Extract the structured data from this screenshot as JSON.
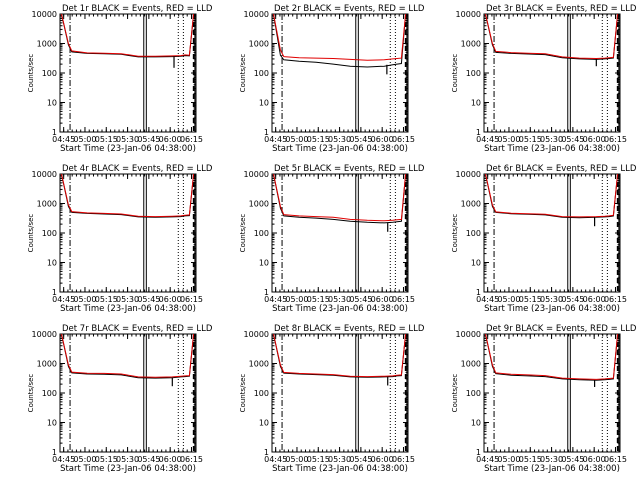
{
  "chart_data": [
    {
      "type": "line",
      "title": "Det 1r BLACK = Events, RED = LLD",
      "xlabel": "Start Time (23-Jan-06 04:38:00)",
      "ylabel": "Counts/sec",
      "yscale": "log",
      "ylim": [
        1,
        10000
      ],
      "xlim": [
        0.082,
        1.678
      ],
      "xtick_labels": [
        "04:45",
        "05:00",
        "05:15",
        "05:30",
        "05:45",
        "06:00",
        "06:15"
      ],
      "ytick_labels": [
        "1",
        "10",
        "100",
        "1000",
        "10000"
      ],
      "x": [
        0.1,
        0.18,
        0.22,
        0.4,
        0.6,
        0.8,
        1.0,
        1.2,
        1.4,
        1.5,
        1.55,
        1.6,
        1.65
      ],
      "series": [
        {
          "color": "#000000",
          "values": [
            10000,
            900,
            520,
            460,
            450,
            430,
            350,
            350,
            360,
            370,
            390,
            380,
            10000
          ]
        },
        {
          "color": "#e00000",
          "values": [
            10000,
            1000,
            560,
            480,
            470,
            450,
            370,
            370,
            380,
            390,
            410,
            400,
            10000
          ]
        }
      ],
      "dips": [
        {
          "x": 1.42,
          "y": 150
        }
      ],
      "time_markers": [
        0.2,
        1.065,
        1.095,
        1.47,
        1.53,
        1.65,
        1.665
      ]
    },
    {
      "type": "line",
      "title": "Det 2r BLACK = Events, RED = LLD",
      "xlabel": "Start Time (23-Jan-06 04:38:00)",
      "ylabel": "Counts/sec",
      "yscale": "log",
      "ylim": [
        1,
        10000
      ],
      "xlim": [
        0.082,
        1.678
      ],
      "xtick_labels": [
        "04:45",
        "05:00",
        "05:15",
        "05:30",
        "05:45",
        "06:00",
        "06:15"
      ],
      "ytick_labels": [
        "1",
        "10",
        "100",
        "1000",
        "10000"
      ],
      "x": [
        0.1,
        0.18,
        0.22,
        0.4,
        0.6,
        0.8,
        1.0,
        1.2,
        1.4,
        1.5,
        1.55,
        1.6,
        1.65
      ],
      "series": [
        {
          "color": "#000000",
          "values": [
            10000,
            400,
            280,
            250,
            230,
            200,
            170,
            160,
            170,
            190,
            200,
            210,
            10000
          ]
        },
        {
          "color": "#e00000",
          "values": [
            10000,
            600,
            360,
            330,
            320,
            310,
            290,
            270,
            280,
            300,
            310,
            320,
            10000
          ]
        }
      ],
      "dips": [
        {
          "x": 1.43,
          "y": 90
        }
      ],
      "time_markers": [
        0.2,
        1.065,
        1.095,
        1.47,
        1.53,
        1.65,
        1.665
      ]
    },
    {
      "type": "line",
      "title": "Det 3r BLACK = Events, RED = LLD",
      "xlabel": "Start Time (23-Jan-06 04:38:00)",
      "ylabel": "Counts/sec",
      "yscale": "log",
      "ylim": [
        1,
        10000
      ],
      "xlim": [
        0.082,
        1.678
      ],
      "xtick_labels": [
        "04:45",
        "05:00",
        "05:15",
        "05:30",
        "05:45",
        "06:00",
        "06:15"
      ],
      "ytick_labels": [
        "1",
        "10",
        "100",
        "1000",
        "10000"
      ],
      "x": [
        0.1,
        0.18,
        0.22,
        0.4,
        0.6,
        0.8,
        1.0,
        1.2,
        1.4,
        1.5,
        1.55,
        1.6,
        1.65
      ],
      "series": [
        {
          "color": "#000000",
          "values": [
            10000,
            900,
            500,
            460,
            440,
            420,
            330,
            300,
            290,
            300,
            310,
            320,
            10000
          ]
        },
        {
          "color": "#e00000",
          "values": [
            10000,
            1000,
            540,
            490,
            470,
            450,
            350,
            320,
            310,
            320,
            330,
            340,
            10000
          ]
        }
      ],
      "dips": [
        {
          "x": 1.4,
          "y": 170
        }
      ],
      "time_markers": [
        0.2,
        1.065,
        1.095,
        1.47,
        1.53,
        1.65,
        1.665
      ]
    },
    {
      "type": "line",
      "title": "Det 4r BLACK = Events, RED = LLD",
      "xlabel": "Start Time (23-Jan-06 04:38:00)",
      "ylabel": "Counts/sec",
      "yscale": "log",
      "ylim": [
        1,
        10000
      ],
      "xlim": [
        0.082,
        1.678
      ],
      "xtick_labels": [
        "04:45",
        "05:00",
        "05:15",
        "05:30",
        "05:45",
        "06:00",
        "06:15"
      ],
      "ytick_labels": [
        "1",
        "10",
        "100",
        "1000",
        "10000"
      ],
      "x": [
        0.1,
        0.18,
        0.22,
        0.4,
        0.6,
        0.8,
        1.0,
        1.2,
        1.4,
        1.5,
        1.55,
        1.6,
        1.65
      ],
      "series": [
        {
          "color": "#000000",
          "values": [
            10000,
            800,
            500,
            460,
            440,
            420,
            350,
            340,
            350,
            360,
            380,
            390,
            10000
          ]
        },
        {
          "color": "#e00000",
          "values": [
            10000,
            900,
            530,
            480,
            460,
            440,
            370,
            360,
            370,
            380,
            400,
            410,
            10000
          ]
        }
      ],
      "dips": [],
      "time_markers": [
        0.2,
        1.065,
        1.095,
        1.47,
        1.53,
        1.65,
        1.665
      ]
    },
    {
      "type": "line",
      "title": "Det 5r BLACK = Events, RED = LLD",
      "xlabel": "Start Time (23-Jan-06 04:38:00)",
      "ylabel": "Counts/sec",
      "yscale": "log",
      "ylim": [
        1,
        10000
      ],
      "xlim": [
        0.082,
        1.678
      ],
      "xtick_labels": [
        "04:45",
        "05:00",
        "05:15",
        "05:30",
        "05:45",
        "06:00",
        "06:15"
      ],
      "ytick_labels": [
        "1",
        "10",
        "100",
        "1000",
        "10000"
      ],
      "x": [
        0.1,
        0.18,
        0.22,
        0.4,
        0.6,
        0.8,
        1.0,
        1.2,
        1.4,
        1.5,
        1.55,
        1.6,
        1.65
      ],
      "series": [
        {
          "color": "#000000",
          "values": [
            10000,
            700,
            380,
            340,
            320,
            290,
            250,
            230,
            220,
            230,
            240,
            250,
            10000
          ]
        },
        {
          "color": "#e00000",
          "values": [
            10000,
            800,
            420,
            380,
            360,
            340,
            290,
            270,
            260,
            270,
            280,
            290,
            10000
          ]
        }
      ],
      "dips": [
        {
          "x": 1.44,
          "y": 110
        }
      ],
      "time_markers": [
        0.2,
        1.065,
        1.095,
        1.47,
        1.53,
        1.65,
        1.665
      ]
    },
    {
      "type": "line",
      "title": "Det 6r BLACK = Events, RED = LLD",
      "xlabel": "Start Time (23-Jan-06 04:38:00)",
      "ylabel": "Counts/sec",
      "yscale": "log",
      "ylim": [
        1,
        10000
      ],
      "xlim": [
        0.082,
        1.678
      ],
      "xtick_labels": [
        "04:45",
        "05:00",
        "05:15",
        "05:30",
        "05:45",
        "06:00",
        "06:15"
      ],
      "ytick_labels": [
        "1",
        "10",
        "100",
        "1000",
        "10000"
      ],
      "x": [
        0.1,
        0.18,
        0.22,
        0.4,
        0.6,
        0.8,
        1.0,
        1.2,
        1.4,
        1.5,
        1.55,
        1.6,
        1.65
      ],
      "series": [
        {
          "color": "#000000",
          "values": [
            10000,
            800,
            500,
            450,
            430,
            410,
            340,
            330,
            340,
            350,
            360,
            380,
            10000
          ]
        },
        {
          "color": "#e00000",
          "values": [
            10000,
            900,
            520,
            470,
            450,
            430,
            360,
            350,
            360,
            370,
            380,
            400,
            10000
          ]
        }
      ],
      "dips": [
        {
          "x": 1.38,
          "y": 170
        }
      ],
      "time_markers": [
        0.2,
        1.065,
        1.095,
        1.47,
        1.53,
        1.65,
        1.665
      ]
    },
    {
      "type": "line",
      "title": "Det 7r BLACK = Events, RED = LLD",
      "xlabel": "Start Time (23-Jan-06 04:38:00)",
      "ylabel": "Counts/sec",
      "yscale": "log",
      "ylim": [
        1,
        10000
      ],
      "xlim": [
        0.082,
        1.678
      ],
      "xtick_labels": [
        "04:45",
        "05:00",
        "05:15",
        "05:30",
        "05:45",
        "06:00",
        "06:15"
      ],
      "ytick_labels": [
        "1",
        "10",
        "100",
        "1000",
        "10000"
      ],
      "x": [
        0.1,
        0.18,
        0.22,
        0.4,
        0.6,
        0.8,
        1.0,
        1.2,
        1.4,
        1.5,
        1.55,
        1.6,
        1.65
      ],
      "series": [
        {
          "color": "#000000",
          "values": [
            10000,
            800,
            480,
            440,
            430,
            410,
            330,
            320,
            330,
            350,
            360,
            370,
            10000
          ]
        },
        {
          "color": "#e00000",
          "values": [
            10000,
            900,
            510,
            470,
            460,
            440,
            350,
            340,
            350,
            370,
            380,
            390,
            10000
          ]
        }
      ],
      "dips": [
        {
          "x": 1.4,
          "y": 170
        }
      ],
      "time_markers": [
        0.2,
        1.065,
        1.095,
        1.47,
        1.53,
        1.65,
        1.665
      ]
    },
    {
      "type": "line",
      "title": "Det 8r BLACK = Events, RED = LLD",
      "xlabel": "Start Time (23-Jan-06 04:38:00)",
      "ylabel": "Counts/sec",
      "yscale": "log",
      "ylim": [
        1,
        10000
      ],
      "xlim": [
        0.082,
        1.678
      ],
      "xtick_labels": [
        "04:45",
        "05:00",
        "05:15",
        "05:30",
        "05:45",
        "06:00",
        "06:15"
      ],
      "ytick_labels": [
        "1",
        "10",
        "100",
        "1000",
        "10000"
      ],
      "x": [
        0.1,
        0.18,
        0.22,
        0.4,
        0.6,
        0.8,
        1.0,
        1.2,
        1.4,
        1.5,
        1.55,
        1.6,
        1.65
      ],
      "series": [
        {
          "color": "#000000",
          "values": [
            10000,
            800,
            470,
            440,
            420,
            400,
            350,
            340,
            350,
            360,
            380,
            390,
            10000
          ]
        },
        {
          "color": "#e00000",
          "values": [
            10000,
            900,
            500,
            460,
            440,
            420,
            370,
            360,
            370,
            380,
            400,
            410,
            10000
          ]
        }
      ],
      "dips": [
        {
          "x": 1.44,
          "y": 180
        }
      ],
      "time_markers": [
        0.2,
        1.065,
        1.095,
        1.47,
        1.53,
        1.65,
        1.665
      ]
    },
    {
      "type": "line",
      "title": "Det 9r BLACK = Events, RED = LLD",
      "xlabel": "Start Time (23-Jan-06 04:38:00)",
      "ylabel": "Counts/sec",
      "yscale": "log",
      "ylim": [
        1,
        10000
      ],
      "xlim": [
        0.082,
        1.678
      ],
      "xtick_labels": [
        "04:45",
        "05:00",
        "05:15",
        "05:30",
        "05:45",
        "06:00",
        "06:15"
      ],
      "ytick_labels": [
        "1",
        "10",
        "100",
        "1000",
        "10000"
      ],
      "x": [
        0.1,
        0.18,
        0.22,
        0.4,
        0.6,
        0.8,
        1.0,
        1.2,
        1.4,
        1.5,
        1.55,
        1.6,
        1.65
      ],
      "series": [
        {
          "color": "#000000",
          "values": [
            10000,
            800,
            450,
            400,
            380,
            360,
            300,
            280,
            270,
            280,
            290,
            300,
            10000
          ]
        },
        {
          "color": "#e00000",
          "values": [
            10000,
            900,
            480,
            430,
            410,
            390,
            320,
            300,
            290,
            300,
            310,
            320,
            10000
          ]
        }
      ],
      "dips": [
        {
          "x": 1.38,
          "y": 160
        }
      ],
      "time_markers": [
        0.2,
        1.065,
        1.095,
        1.47,
        1.53,
        1.65,
        1.665
      ]
    }
  ]
}
